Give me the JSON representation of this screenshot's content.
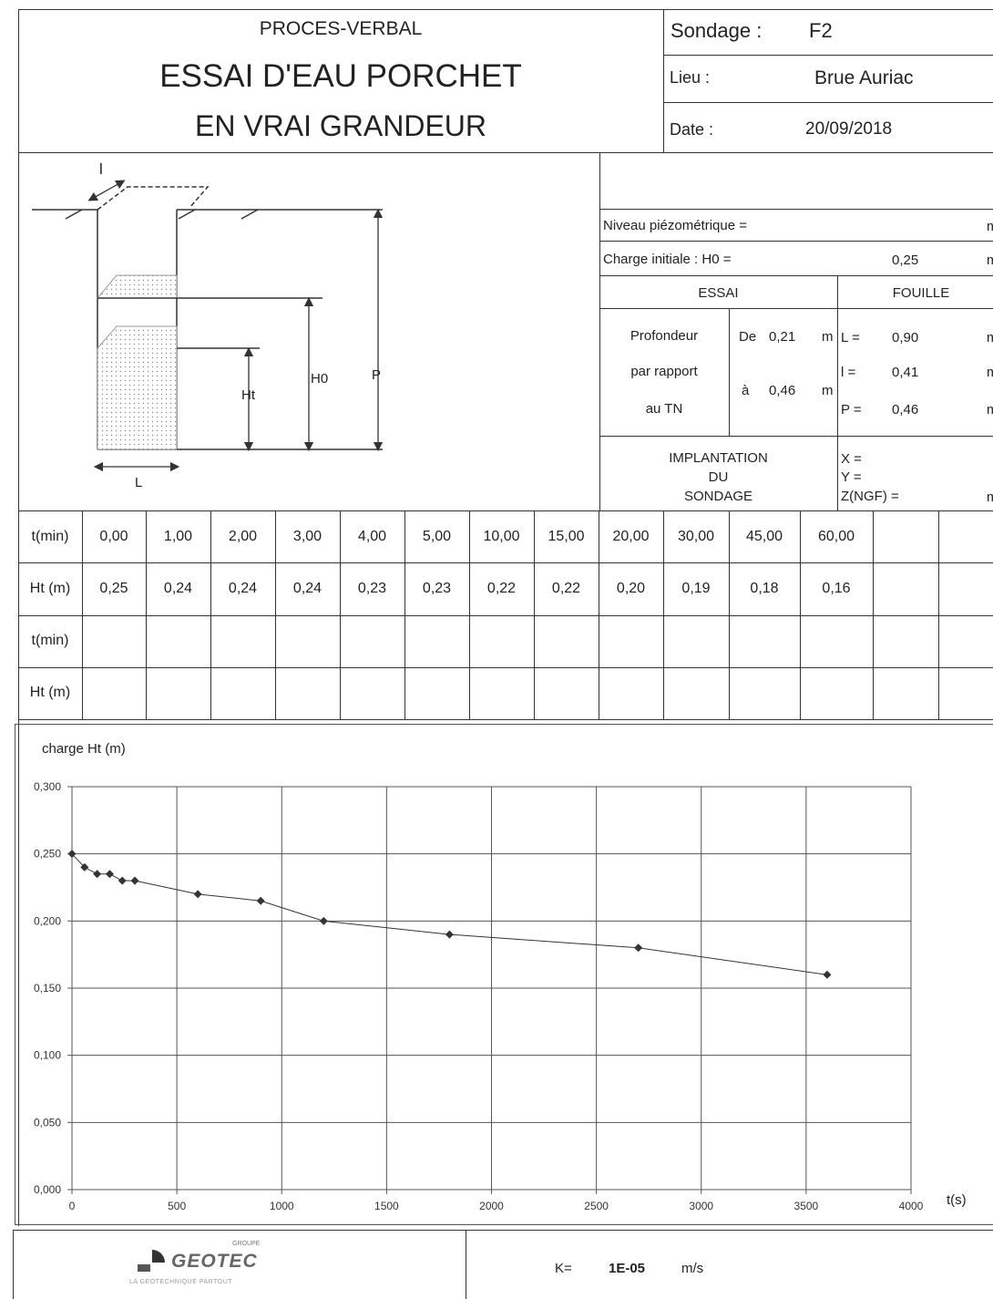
{
  "header": {
    "title_small": "PROCES-VERBAL",
    "title_line1": "ESSAI D'EAU PORCHET",
    "title_line2": "EN VRAI GRANDEUR",
    "sondage_label": "Sondage :",
    "sondage_value": "F2",
    "lieu_label": "Lieu :",
    "lieu_value": "Brue Auriac",
    "date_label": "Date :",
    "date_value": "20/09/2018"
  },
  "diagram": {
    "l_label": "l",
    "L_label": "L",
    "Ht_label": "Ht",
    "H0_label": "H0",
    "P_label": "P"
  },
  "params": {
    "niveau_label": "Niveau piézométrique  =",
    "unit_m": "m",
    "charge_label": "Charge initiale : H0 =",
    "charge_value": "0,25",
    "essai_label": "ESSAI",
    "fouille_label": "FOUILLE",
    "prof_line1": "Profondeur",
    "prof_line2": "par rapport",
    "prof_line3": "au TN",
    "de_label": "De",
    "de_value": "0,21",
    "a_label": "à",
    "a_value": "0,46",
    "L_label": "L  =",
    "L_value": "0,90",
    "l_label": "l    =",
    "l_value": "0,41",
    "P_label": "P   =",
    "P_value": "0,46",
    "impl_line1": "IMPLANTATION",
    "impl_line2": "DU",
    "impl_line3": "SONDAGE",
    "x_label": "X =",
    "y_label": "Y =",
    "z_label": "Z(NGF) ="
  },
  "table": {
    "t_label": "t(min)",
    "ht_label": "Ht (m)",
    "t_values": [
      "0,00",
      "1,00",
      "2,00",
      "3,00",
      "4,00",
      "5,00",
      "10,00",
      "15,00",
      "20,00",
      "30,00",
      "45,00",
      "60,00"
    ],
    "ht_values": [
      "0,25",
      "0,24",
      "0,24",
      "0,24",
      "0,23",
      "0,23",
      "0,22",
      "0,22",
      "0,20",
      "0,19",
      "0,18",
      "0,16"
    ]
  },
  "chart_data": {
    "type": "line",
    "ylabel": "charge Ht (m)",
    "xlabel": "t(s)",
    "xlim": [
      0,
      4000
    ],
    "ylim": [
      0,
      0.3
    ],
    "x_ticks": [
      "0",
      "500",
      "1000",
      "1500",
      "2000",
      "2500",
      "3000",
      "3500",
      "4000"
    ],
    "y_ticks": [
      "0,000",
      "0,050",
      "0,100",
      "0,150",
      "0,200",
      "0,250",
      "0,300"
    ],
    "grid": true,
    "x": [
      0,
      60,
      120,
      180,
      240,
      300,
      600,
      900,
      1200,
      1800,
      2700,
      3600
    ],
    "y": [
      0.25,
      0.24,
      0.235,
      0.235,
      0.23,
      0.23,
      0.22,
      0.215,
      0.2,
      0.19,
      0.18,
      0.16
    ]
  },
  "footer": {
    "logo_small": "GROUPE",
    "logo_text": "GEOTEC",
    "logo_tagline": "LA GEOTECHNIQUE PARTOUT",
    "k_label": "K=",
    "k_value": "1E-05",
    "k_unit": "m/s"
  }
}
